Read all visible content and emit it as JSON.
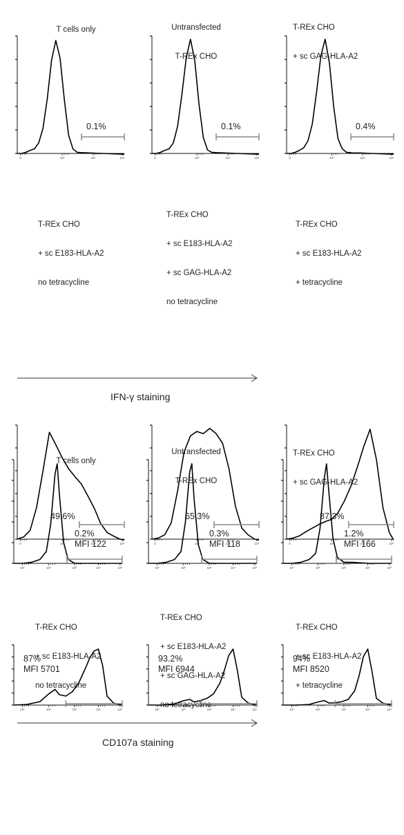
{
  "sections": [
    {
      "axis_label": "IFN-γ staining",
      "rows": [
        {
          "panels": [
            {
              "title": [
                "T cells only"
              ],
              "labels": [
                "0.1%"
              ],
              "chart_data": {
                "type": "area",
                "x_axis": "log",
                "ticks": [
                  "0",
                  "10³",
                  "10⁴",
                  "10⁵"
                ],
                "gate_percent": 0.1,
                "series": [
                  {
                    "x": [
                      0,
                      0.2,
                      0.4,
                      0.6,
                      0.8,
                      1.0,
                      1.2,
                      1.4,
                      1.6,
                      1.8,
                      2.0,
                      2.2,
                      2.4,
                      2.6,
                      2.8,
                      3.0,
                      4.0,
                      5.0
                    ],
                    "y": [
                      0,
                      0,
                      1,
                      2,
                      4,
                      10,
                      22,
                      48,
                      82,
                      99,
                      84,
                      48,
                      16,
                      4,
                      1,
                      0,
                      0,
                      0
                    ]
                  }
                ]
              }
            },
            {
              "title": [
                "Untransfected",
                "T-REx CHO"
              ],
              "labels": [
                "0.1%"
              ],
              "chart_data": {
                "type": "area",
                "x_axis": "log",
                "ticks": [
                  "0",
                  "10³",
                  "10⁴",
                  "10⁵"
                ],
                "gate_percent": 0.1,
                "series": [
                  {
                    "x": [
                      0,
                      0.2,
                      0.4,
                      0.6,
                      0.8,
                      1.0,
                      1.2,
                      1.4,
                      1.6,
                      1.8,
                      2.0,
                      2.2,
                      2.4,
                      2.6,
                      2.8,
                      3.0,
                      4.0,
                      5.0
                    ],
                    "y": [
                      0,
                      0,
                      1,
                      2,
                      4,
                      10,
                      24,
                      52,
                      84,
                      100,
                      82,
                      44,
                      14,
                      3,
                      1,
                      0,
                      0,
                      0
                    ]
                  }
                ]
              }
            },
            {
              "title": [
                "T-REx CHO",
                "+ sc GAG-HLA-A2"
              ],
              "labels": [
                "0.4%"
              ],
              "chart_data": {
                "type": "area",
                "x_axis": "log",
                "ticks": [
                  "0",
                  "10³",
                  "10⁴",
                  "10⁵"
                ],
                "gate_percent": 0.4,
                "series": [
                  {
                    "x": [
                      0,
                      0.2,
                      0.4,
                      0.6,
                      0.8,
                      1.0,
                      1.2,
                      1.4,
                      1.6,
                      1.8,
                      2.0,
                      2.2,
                      2.4,
                      2.6,
                      2.8,
                      3.0,
                      4.0,
                      5.0
                    ],
                    "y": [
                      0,
                      0,
                      1,
                      2,
                      5,
                      12,
                      26,
                      54,
                      86,
                      100,
                      80,
                      42,
                      13,
                      4,
                      1,
                      0,
                      0,
                      0
                    ]
                  }
                ]
              }
            }
          ]
        },
        {
          "panels": [
            {
              "title": [
                "T-REx CHO",
                "+ sc E183-HLA-A2",
                "no tetracycline"
              ],
              "labels": [
                "49.6%"
              ],
              "chart_data": {
                "type": "area",
                "x_axis": "log",
                "ticks": [
                  "0",
                  "10³",
                  "10⁴",
                  "10⁵"
                ],
                "gate_percent": 49.6,
                "series": [
                  {
                    "x": [
                      0,
                      0.3,
                      0.6,
                      0.9,
                      1.2,
                      1.5,
                      1.8,
                      2.1,
                      2.4,
                      2.7,
                      3.0,
                      3.3,
                      3.6,
                      3.9,
                      4.2,
                      4.5,
                      4.8,
                      5.0
                    ],
                    "y": [
                      0,
                      2,
                      8,
                      28,
                      62,
                      98,
                      86,
                      74,
                      64,
                      56,
                      50,
                      40,
                      28,
                      14,
                      6,
                      2,
                      0,
                      0
                    ]
                  }
                ]
              }
            },
            {
              "title": [
                "T-REx CHO",
                "+ sc E183-HLA-A2",
                "+ sc GAG-HLA-A2",
                "no tetracycline"
              ],
              "labels": [
                "65.3%"
              ],
              "chart_data": {
                "type": "area",
                "x_axis": "log",
                "ticks": [
                  "0",
                  "10³",
                  "10⁴",
                  "10⁵"
                ],
                "gate_percent": 65.3,
                "series": [
                  {
                    "x": [
                      0,
                      0.3,
                      0.6,
                      0.9,
                      1.2,
                      1.5,
                      1.8,
                      2.1,
                      2.4,
                      2.7,
                      3.0,
                      3.3,
                      3.6,
                      3.9,
                      4.2,
                      4.5,
                      4.8,
                      5.0
                    ],
                    "y": [
                      0,
                      1,
                      4,
                      14,
                      44,
                      80,
                      94,
                      98,
                      96,
                      100,
                      96,
                      88,
                      64,
                      30,
                      10,
                      3,
                      0,
                      0
                    ]
                  }
                ]
              }
            },
            {
              "title": [
                "T-REx CHO",
                "+ sc E183-HLA-A2",
                "+ tetracycline"
              ],
              "labels": [
                "87.3%"
              ],
              "chart_data": {
                "type": "area",
                "x_axis": "log",
                "ticks": [
                  "0",
                  "10³",
                  "10⁴",
                  "10⁵"
                ],
                "gate_percent": 87.3,
                "series": [
                  {
                    "x": [
                      0,
                      0.3,
                      0.6,
                      0.9,
                      1.2,
                      1.5,
                      1.8,
                      2.1,
                      2.4,
                      2.7,
                      3.0,
                      3.3,
                      3.6,
                      3.9,
                      4.2,
                      4.5,
                      4.8,
                      5.0
                    ],
                    "y": [
                      0,
                      1,
                      3,
                      6,
                      10,
                      14,
                      16,
                      18,
                      24,
                      34,
                      48,
                      66,
                      84,
                      100,
                      72,
                      28,
                      6,
                      0
                    ]
                  }
                ]
              }
            }
          ]
        }
      ]
    },
    {
      "axis_label": "CD107a staining",
      "rows": [
        {
          "panels": [
            {
              "title": [
                "T cells only"
              ],
              "labels": [
                "0.2%",
                "MFI 122"
              ],
              "chart_data": {
                "type": "area",
                "x_axis": "log",
                "ticks": [
                  "10¹",
                  "10²",
                  "10³",
                  "10⁴",
                  "10⁵"
                ],
                "gate_percent": 0.2,
                "mfi": 122,
                "series": [
                  {
                    "x": [
                      0,
                      0.4,
                      0.8,
                      1.2,
                      1.5,
                      1.7,
                      1.9,
                      2.0,
                      2.1,
                      2.3,
                      2.5,
                      2.8,
                      3.2,
                      4.0,
                      5.0
                    ],
                    "y": [
                      0,
                      0,
                      1,
                      3,
                      12,
                      40,
                      90,
                      100,
                      70,
                      20,
                      4,
                      1,
                      0,
                      0,
                      0
                    ]
                  }
                ]
              }
            },
            {
              "title": [
                "Untransfected",
                "T-REx CHO"
              ],
              "labels": [
                "0.3%",
                "MFI 118"
              ],
              "chart_data": {
                "type": "area",
                "x_axis": "log",
                "ticks": [
                  "10¹",
                  "10²",
                  "10³",
                  "10⁴",
                  "10⁵"
                ],
                "gate_percent": 0.3,
                "mfi": 118,
                "series": [
                  {
                    "x": [
                      0,
                      0.4,
                      0.8,
                      1.2,
                      1.5,
                      1.7,
                      1.9,
                      2.0,
                      2.1,
                      2.3,
                      2.5,
                      2.8,
                      3.2,
                      4.0,
                      5.0
                    ],
                    "y": [
                      0,
                      0,
                      1,
                      3,
                      12,
                      42,
                      92,
                      100,
                      66,
                      18,
                      4,
                      1,
                      0,
                      0,
                      0
                    ]
                  }
                ]
              }
            },
            {
              "title": [
                "T-REx CHO",
                "+ sc GAG-HLA-A2"
              ],
              "labels": [
                "1.2%",
                "MFI 166"
              ],
              "chart_data": {
                "type": "area",
                "x_axis": "log",
                "ticks": [
                  "10¹",
                  "10²",
                  "10³",
                  "10⁴",
                  "10⁵"
                ],
                "gate_percent": 1.2,
                "mfi": 166,
                "series": [
                  {
                    "x": [
                      0,
                      0.4,
                      0.8,
                      1.2,
                      1.5,
                      1.7,
                      1.9,
                      2.0,
                      2.1,
                      2.3,
                      2.5,
                      2.8,
                      3.2,
                      4.0,
                      5.0
                    ],
                    "y": [
                      0,
                      0,
                      1,
                      3,
                      10,
                      36,
                      86,
                      100,
                      74,
                      24,
                      6,
                      2,
                      1,
                      0,
                      0
                    ]
                  }
                ]
              }
            }
          ]
        },
        {
          "panels": [
            {
              "title": [
                "T-REx CHO",
                "+ sc E183-HLA-A2",
                "no tetracycline"
              ],
              "labels": [
                "87%",
                "MFI 5701"
              ],
              "chart_data": {
                "type": "area",
                "x_axis": "log",
                "ticks": [
                  "10¹",
                  "10²",
                  "10³",
                  "10⁴",
                  "10⁵"
                ],
                "gate_percent": 87,
                "mfi": 5701,
                "series": [
                  {
                    "x": [
                      0,
                      0.6,
                      1.2,
                      1.6,
                      1.9,
                      2.1,
                      2.4,
                      2.7,
                      3.0,
                      3.3,
                      3.5,
                      3.7,
                      3.9,
                      4.1,
                      4.3,
                      4.6,
                      5.0
                    ],
                    "y": [
                      0,
                      1,
                      6,
                      18,
                      28,
                      20,
                      16,
                      24,
                      40,
                      64,
                      84,
                      98,
                      100,
                      70,
                      16,
                      2,
                      0
                    ]
                  }
                ]
              }
            },
            {
              "title": [
                "T-REx CHO",
                "+ sc E183-HLA-A2",
                "+ sc GAG-HLA-A2",
                "no tetracycline"
              ],
              "labels": [
                "93.2%",
                "MFI 6944"
              ],
              "chart_data": {
                "type": "area",
                "x_axis": "log",
                "ticks": [
                  "10¹",
                  "10²",
                  "10³",
                  "10⁴",
                  "10⁵"
                ],
                "gate_percent": 93.2,
                "mfi": 6944,
                "series": [
                  {
                    "x": [
                      0,
                      0.6,
                      1.2,
                      1.6,
                      1.9,
                      2.1,
                      2.4,
                      2.7,
                      3.0,
                      3.3,
                      3.5,
                      3.7,
                      3.9,
                      4.1,
                      4.3,
                      4.6,
                      5.0
                    ],
                    "y": [
                      0,
                      0,
                      2,
                      6,
                      10,
                      7,
                      8,
                      12,
                      20,
                      38,
                      62,
                      90,
                      100,
                      62,
                      14,
                      2,
                      0
                    ]
                  }
                ]
              }
            },
            {
              "title": [
                "T-REx CHO",
                "+ sc E183-HLA-A2",
                "+ tetracycline"
              ],
              "labels": [
                "94%",
                "MFI 8520"
              ],
              "chart_data": {
                "type": "area",
                "x_axis": "log",
                "ticks": [
                  "10¹",
                  "10²",
                  "10³",
                  "10⁴",
                  "10⁵"
                ],
                "gate_percent": 94,
                "mfi": 8520,
                "series": [
                  {
                    "x": [
                      0,
                      0.6,
                      1.2,
                      1.6,
                      1.9,
                      2.1,
                      2.4,
                      2.7,
                      3.0,
                      3.3,
                      3.5,
                      3.7,
                      3.9,
                      4.1,
                      4.3,
                      4.6,
                      5.0
                    ],
                    "y": [
                      0,
                      0,
                      1,
                      4,
                      8,
                      5,
                      4,
                      6,
                      10,
                      24,
                      52,
                      88,
                      100,
                      60,
                      12,
                      2,
                      0
                    ]
                  }
                ]
              }
            }
          ]
        }
      ]
    }
  ]
}
